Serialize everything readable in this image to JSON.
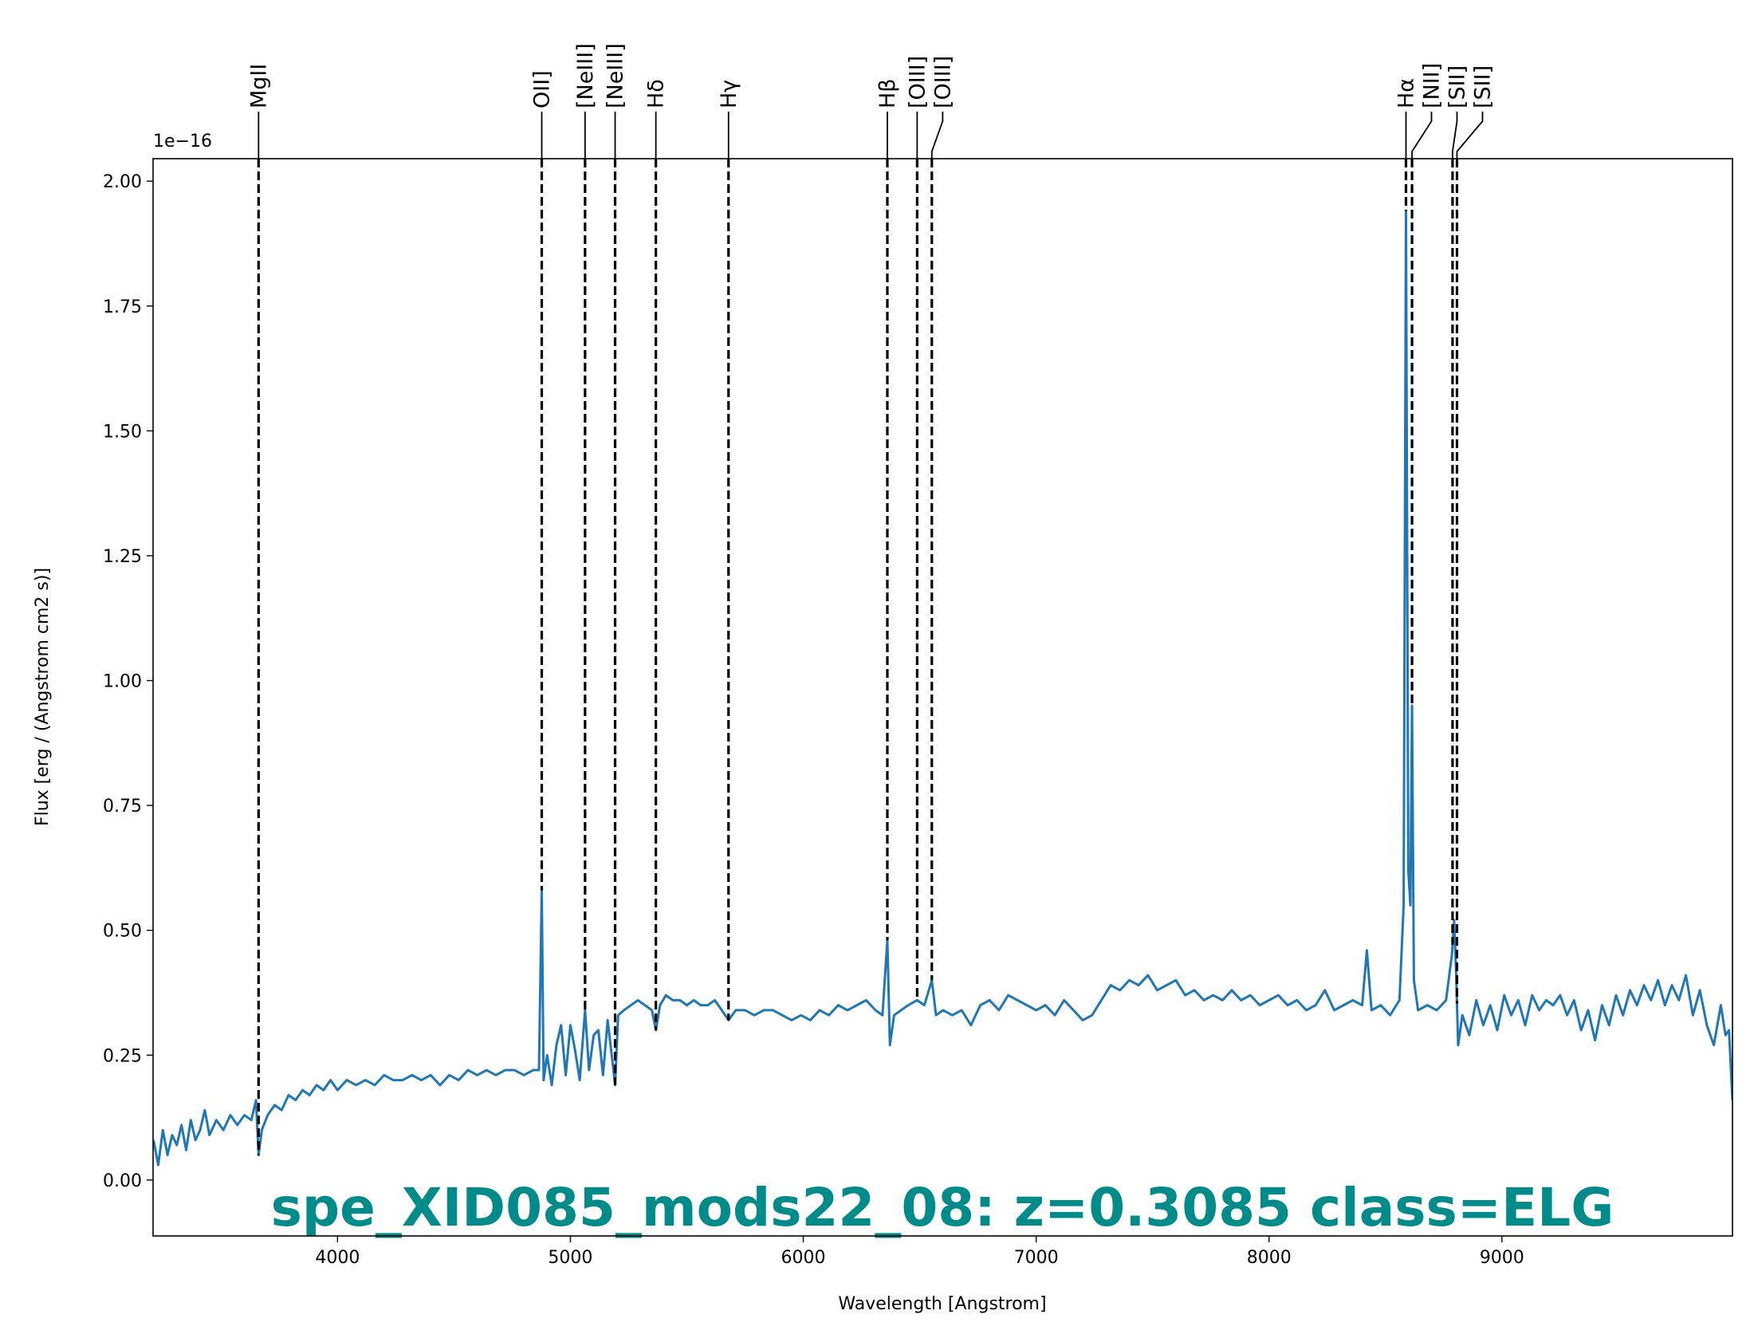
{
  "chart_data": {
    "type": "line",
    "annotation": "spe_XID085_mods22_08: z=0.3085 class=ELG",
    "xlabel": "Wavelength [Angstrom]",
    "ylabel": "Flux [erg / (Angstrom cm2 s)]",
    "y_offset_label": "1e−16",
    "color": "#1f77b4",
    "annotation_color": "#008b8b",
    "line_color": "#000000",
    "grid": false,
    "xlim": [
      3208,
      9990
    ],
    "xticks": [
      4000,
      5000,
      6000,
      7000,
      8000,
      9000
    ],
    "ylim": [
      -0.112,
      2.045
    ],
    "yticks": [
      {
        "value": 0,
        "label": "0.00"
      },
      0.25,
      {
        "value": 0.5,
        "label": "0.50"
      },
      0.75,
      {
        "value": 1,
        "label": "1.00"
      },
      1.25,
      {
        "value": 1.5,
        "label": "1.50"
      },
      1.75,
      {
        "value": 2,
        "label": "2.00"
      }
    ],
    "lines": [
      {
        "label": "MgII",
        "x": 3661
      },
      {
        "label": "OII]",
        "x": 4877
      },
      {
        "label": "[NeIII]",
        "x": 5063
      },
      {
        "label": "[NeIII]",
        "x": 5192
      },
      {
        "label": "Hδ",
        "x": 5367
      },
      {
        "label": "Hγ",
        "x": 5679
      },
      {
        "label": "Hβ",
        "x": 6361
      },
      {
        "label": "[OIII]",
        "x": 6489
      },
      {
        "label": "[OIII]",
        "x": 6552
      },
      {
        "label": "Hα",
        "x": 8588
      },
      {
        "label": "[NII]",
        "x": 8614
      },
      {
        "label": "[SII]",
        "x": 8788
      },
      {
        "label": "[SII]",
        "x": 8807
      }
    ],
    "x": [
      3210,
      3230,
      3250,
      3270,
      3290,
      3310,
      3330,
      3350,
      3370,
      3390,
      3410,
      3430,
      3450,
      3480,
      3510,
      3540,
      3570,
      3600,
      3630,
      3650,
      3661,
      3675,
      3700,
      3730,
      3760,
      3790,
      3820,
      3850,
      3880,
      3910,
      3940,
      3970,
      4000,
      4040,
      4080,
      4120,
      4160,
      4200,
      4240,
      4280,
      4320,
      4360,
      4400,
      4440,
      4480,
      4520,
      4560,
      4600,
      4640,
      4680,
      4720,
      4760,
      4800,
      4840,
      4865,
      4877,
      4885,
      4900,
      4920,
      4940,
      4960,
      4980,
      5000,
      5020,
      5040,
      5063,
      5080,
      5100,
      5120,
      5140,
      5160,
      5180,
      5192,
      5205,
      5230,
      5260,
      5290,
      5320,
      5350,
      5367,
      5385,
      5410,
      5440,
      5470,
      5500,
      5530,
      5560,
      5590,
      5620,
      5650,
      5679,
      5710,
      5750,
      5790,
      5830,
      5870,
      5910,
      5950,
      5990,
      6030,
      6070,
      6110,
      6150,
      6190,
      6230,
      6270,
      6310,
      6340,
      6361,
      6372,
      6390,
      6420,
      6450,
      6489,
      6520,
      6552,
      6570,
      6600,
      6640,
      6680,
      6720,
      6760,
      6800,
      6840,
      6880,
      6920,
      6960,
      7000,
      7040,
      7080,
      7120,
      7160,
      7200,
      7240,
      7280,
      7320,
      7360,
      7400,
      7440,
      7480,
      7520,
      7560,
      7600,
      7640,
      7680,
      7720,
      7760,
      7800,
      7840,
      7880,
      7920,
      7960,
      8000,
      8040,
      8080,
      8120,
      8160,
      8200,
      8240,
      8280,
      8320,
      8360,
      8400,
      8420,
      8440,
      8480,
      8520,
      8560,
      8578,
      8588,
      8598,
      8607,
      8614,
      8622,
      8640,
      8680,
      8720,
      8760,
      8785,
      8795,
      8803,
      8812,
      8830,
      8860,
      8890,
      8920,
      8950,
      8980,
      9010,
      9040,
      9070,
      9100,
      9130,
      9160,
      9190,
      9220,
      9250,
      9280,
      9310,
      9340,
      9370,
      9400,
      9430,
      9460,
      9490,
      9520,
      9550,
      9580,
      9610,
      9640,
      9670,
      9700,
      9730,
      9760,
      9790,
      9820,
      9850,
      9880,
      9910,
      9940,
      9960,
      9975,
      9990
    ],
    "values": [
      0.08,
      0.03,
      0.1,
      0.05,
      0.09,
      0.07,
      0.11,
      0.06,
      0.12,
      0.08,
      0.1,
      0.14,
      0.09,
      0.12,
      0.1,
      0.13,
      0.11,
      0.13,
      0.12,
      0.16,
      0.05,
      0.1,
      0.13,
      0.15,
      0.14,
      0.17,
      0.16,
      0.18,
      0.17,
      0.19,
      0.18,
      0.2,
      0.18,
      0.2,
      0.19,
      0.2,
      0.19,
      0.21,
      0.2,
      0.2,
      0.21,
      0.2,
      0.21,
      0.19,
      0.21,
      0.2,
      0.22,
      0.21,
      0.22,
      0.21,
      0.22,
      0.22,
      0.21,
      0.22,
      0.22,
      0.58,
      0.2,
      0.25,
      0.19,
      0.27,
      0.31,
      0.21,
      0.31,
      0.26,
      0.2,
      0.34,
      0.22,
      0.29,
      0.3,
      0.21,
      0.32,
      0.24,
      0.19,
      0.33,
      0.34,
      0.35,
      0.36,
      0.35,
      0.34,
      0.3,
      0.35,
      0.37,
      0.36,
      0.36,
      0.35,
      0.36,
      0.35,
      0.35,
      0.36,
      0.34,
      0.32,
      0.34,
      0.34,
      0.33,
      0.34,
      0.34,
      0.33,
      0.32,
      0.33,
      0.32,
      0.34,
      0.33,
      0.35,
      0.34,
      0.35,
      0.36,
      0.34,
      0.33,
      0.48,
      0.27,
      0.33,
      0.34,
      0.35,
      0.36,
      0.35,
      0.4,
      0.33,
      0.34,
      0.33,
      0.34,
      0.31,
      0.35,
      0.36,
      0.34,
      0.37,
      0.36,
      0.35,
      0.34,
      0.35,
      0.33,
      0.36,
      0.34,
      0.32,
      0.33,
      0.36,
      0.39,
      0.38,
      0.4,
      0.39,
      0.41,
      0.38,
      0.39,
      0.4,
      0.37,
      0.38,
      0.36,
      0.37,
      0.36,
      0.38,
      0.36,
      0.37,
      0.35,
      0.36,
      0.37,
      0.35,
      0.36,
      0.34,
      0.35,
      0.38,
      0.34,
      0.35,
      0.36,
      0.35,
      0.46,
      0.34,
      0.35,
      0.33,
      0.36,
      0.55,
      1.94,
      0.62,
      0.55,
      0.95,
      0.4,
      0.34,
      0.35,
      0.34,
      0.36,
      0.45,
      0.52,
      0.42,
      0.27,
      0.33,
      0.29,
      0.36,
      0.31,
      0.35,
      0.3,
      0.37,
      0.33,
      0.36,
      0.31,
      0.37,
      0.34,
      0.36,
      0.35,
      0.37,
      0.33,
      0.36,
      0.3,
      0.34,
      0.28,
      0.35,
      0.31,
      0.37,
      0.33,
      0.38,
      0.35,
      0.39,
      0.36,
      0.4,
      0.35,
      0.39,
      0.36,
      0.41,
      0.33,
      0.38,
      0.31,
      0.27,
      0.35,
      0.29,
      0.3,
      0.16
    ]
  }
}
